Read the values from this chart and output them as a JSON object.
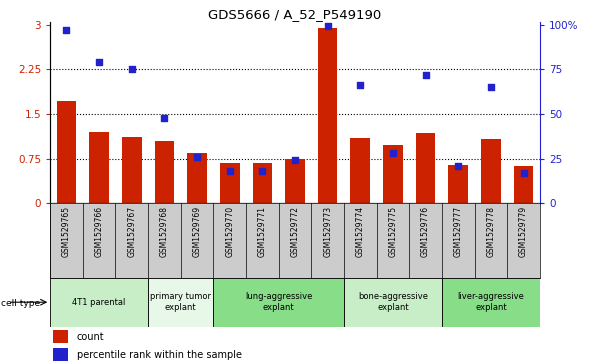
{
  "title": "GDS5666 / A_52_P549190",
  "samples": [
    "GSM1529765",
    "GSM1529766",
    "GSM1529767",
    "GSM1529768",
    "GSM1529769",
    "GSM1529770",
    "GSM1529771",
    "GSM1529772",
    "GSM1529773",
    "GSM1529774",
    "GSM1529775",
    "GSM1529776",
    "GSM1529777",
    "GSM1529778",
    "GSM1529779"
  ],
  "counts": [
    1.72,
    1.2,
    1.12,
    1.05,
    0.85,
    0.68,
    0.68,
    0.75,
    2.95,
    1.1,
    0.98,
    1.18,
    0.65,
    1.08,
    0.62
  ],
  "percentiles": [
    97,
    79,
    75,
    48,
    26,
    18,
    18,
    24,
    99,
    66,
    28,
    72,
    21,
    65,
    17
  ],
  "groups": [
    {
      "label": "4T1 parental",
      "start": 0,
      "end": 3,
      "color": "#c8eec8"
    },
    {
      "label": "primary tumor\nexplant",
      "start": 3,
      "end": 5,
      "color": "#e8f8e8"
    },
    {
      "label": "lung-aggressive\nexplant",
      "start": 5,
      "end": 9,
      "color": "#88dd88"
    },
    {
      "label": "bone-aggressive\nexplant",
      "start": 9,
      "end": 12,
      "color": "#c8eec8"
    },
    {
      "label": "liver-aggressive\nexplant",
      "start": 12,
      "end": 15,
      "color": "#88dd88"
    }
  ],
  "ylim_left": [
    0,
    3.05
  ],
  "ylim_right": [
    0,
    101.6
  ],
  "yticks_left": [
    0,
    0.75,
    1.5,
    2.25,
    3
  ],
  "ytick_labels_left": [
    "0",
    "0.75",
    "1.5",
    "2.25",
    "3"
  ],
  "yticks_right": [
    0,
    25,
    50,
    75,
    100
  ],
  "ytick_labels_right": [
    "0",
    "25",
    "50",
    "75",
    "100%"
  ],
  "bar_color": "#cc2200",
  "dot_color": "#2222cc",
  "bar_width": 0.6,
  "dot_size": 16,
  "bg_color": "#ffffff",
  "axis_color_left": "#cc2200",
  "axis_color_right": "#2222cc",
  "sample_bg": "#cccccc",
  "gridline_color": "#000000"
}
